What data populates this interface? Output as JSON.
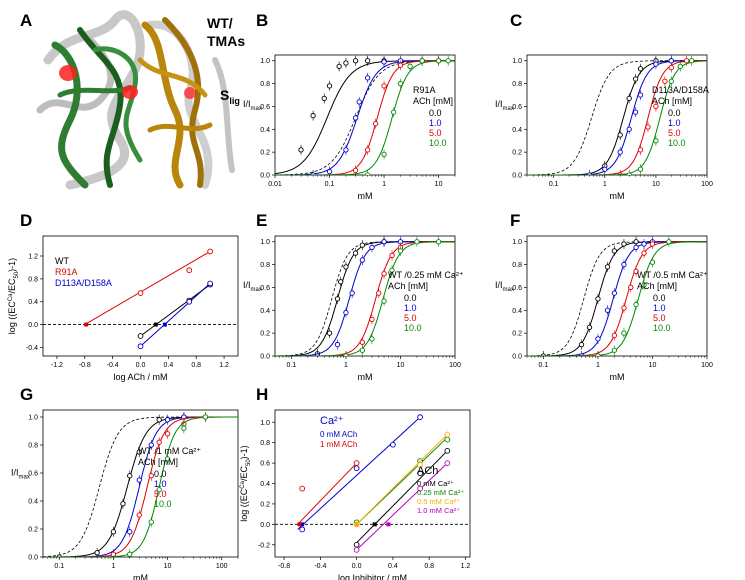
{
  "panel_a": {
    "letter": "A",
    "label_1": "WT/",
    "label_2": "TMAs",
    "label_s": "S",
    "label_s_sub": "lig"
  },
  "chart_data": [
    {
      "id": "B",
      "letter": "B",
      "type": "line",
      "xscale": "log",
      "xlim": [
        0.01,
        20
      ],
      "ylim": [
        0,
        1.05
      ],
      "xlabel": "mM",
      "ylabel": "I/I",
      "ylabel_sub": "max",
      "xticks": [
        0.01,
        0.1,
        1,
        10
      ],
      "xticklabels": [
        "0.01",
        "0.1",
        "1",
        "10"
      ],
      "yticks": [
        0,
        0.2,
        0.4,
        0.6,
        0.8,
        1.0
      ],
      "yticklabels": [
        "0.0",
        "0.2",
        "0.4",
        "0.6",
        "0.8",
        "1.0"
      ],
      "legend_title": [
        "R91A",
        "ACh [mM]"
      ],
      "legend_pos": "center-right",
      "ref": {
        "ec50": 0.3,
        "n": 2.0
      },
      "series": [
        {
          "name": "0.0",
          "color": "#000000",
          "ec50": 0.09,
          "n": 2.0,
          "x": [
            0.03,
            0.05,
            0.08,
            0.1,
            0.15,
            0.2,
            0.3,
            0.5,
            1.0
          ],
          "y": [
            0.22,
            0.52,
            0.67,
            0.78,
            0.95,
            0.98,
            1.0,
            1.0,
            1.0
          ]
        },
        {
          "name": "1.0",
          "color": "#0000cc",
          "ec50": 0.32,
          "n": 2.5,
          "x": [
            0.05,
            0.1,
            0.2,
            0.3,
            0.35,
            0.5,
            1.0,
            2.0,
            5.0
          ],
          "y": [
            0.0,
            0.03,
            0.22,
            0.5,
            0.64,
            0.85,
            0.99,
            1.0,
            1.0
          ]
        },
        {
          "name": "5.0",
          "color": "#dd0000",
          "ec50": 0.75,
          "n": 3.0,
          "x": [
            0.3,
            0.5,
            0.7,
            1.0,
            2.0,
            5.0,
            10.0
          ],
          "y": [
            0.04,
            0.22,
            0.45,
            0.78,
            0.96,
            1.0,
            1.0
          ]
        },
        {
          "name": "10.0",
          "color": "#008800",
          "ec50": 1.4,
          "n": 3.0,
          "x": [
            0.5,
            1.0,
            1.5,
            2.0,
            3.0,
            5.0,
            10.0,
            15.0
          ],
          "y": [
            0.0,
            0.18,
            0.55,
            0.8,
            0.95,
            1.0,
            1.0,
            1.0
          ]
        }
      ]
    },
    {
      "id": "C",
      "letter": "C",
      "type": "line",
      "xscale": "log",
      "xlim": [
        0.03,
        100
      ],
      "ylim": [
        0,
        1.05
      ],
      "xlabel": "mM",
      "ylabel": "I/I",
      "ylabel_sub": "max",
      "xticks": [
        0.1,
        1,
        10,
        100
      ],
      "xticklabels": [
        "0.1",
        "1",
        "10",
        "100"
      ],
      "yticks": [
        0,
        0.2,
        0.4,
        0.6,
        0.8,
        1.0
      ],
      "yticklabels": [
        "0.0",
        "0.2",
        "0.4",
        "0.6",
        "0.8",
        "1.0"
      ],
      "legend_title": [
        "D113A/D158A",
        "ACh [mM]"
      ],
      "legend_pos": "center-right",
      "ref": {
        "ec50": 0.55,
        "n": 2.5
      },
      "series": [
        {
          "name": "0.0",
          "color": "#000000",
          "ec50": 2.3,
          "n": 2.8,
          "x": [
            1.0,
            2.0,
            3.0,
            4.0,
            5.0,
            10.0,
            20.0
          ],
          "y": [
            0.08,
            0.35,
            0.67,
            0.84,
            0.93,
            1.0,
            1.0
          ]
        },
        {
          "name": "1.0",
          "color": "#0000cc",
          "ec50": 3.3,
          "n": 2.8,
          "x": [
            0.5,
            1.0,
            2.0,
            3.0,
            4.0,
            5.0,
            10.0,
            20.0
          ],
          "y": [
            0.0,
            0.05,
            0.2,
            0.4,
            0.55,
            0.7,
            0.97,
            1.0
          ]
        },
        {
          "name": "5.0",
          "color": "#dd0000",
          "ec50": 7.0,
          "n": 3.0,
          "x": [
            2.0,
            5.0,
            7.0,
            10.0,
            15.0,
            20.0,
            40.0
          ],
          "y": [
            0.0,
            0.22,
            0.42,
            0.6,
            0.82,
            0.94,
            1.0
          ]
        },
        {
          "name": "10.0",
          "color": "#008800",
          "ec50": 12.0,
          "n": 3.0,
          "x": [
            3.0,
            5.0,
            10.0,
            20.0,
            30.0,
            50.0
          ],
          "y": [
            0.0,
            0.05,
            0.3,
            0.82,
            0.95,
            1.0
          ]
        }
      ]
    },
    {
      "id": "D",
      "letter": "D",
      "type": "scatter",
      "xscale": "linear",
      "xlim": [
        -1.4,
        1.4
      ],
      "ylim": [
        -0.55,
        1.55
      ],
      "xlabel": "log ACh / mM",
      "ylabel": "log ((EC",
      "ylabel_sup": "Ca",
      "ylabel_tail": "/EC",
      "ylabel_sub": "50",
      "ylabel_end": ")-1)",
      "xticks": [
        -1.2,
        -0.8,
        -0.4,
        0,
        0.4,
        0.8,
        1.2
      ],
      "xticklabels": [
        "-1.2",
        "-0.8",
        "-0.4",
        "0.0",
        "0.4",
        "0.8",
        "1.2"
      ],
      "yticks": [
        -0.4,
        0,
        0.4,
        0.8,
        1.2
      ],
      "yticklabels": [
        "-0.4",
        "0.0",
        "0.4",
        "0.8",
        "1.2"
      ],
      "zero_line": true,
      "legend_pos": "top-left",
      "series": [
        {
          "name": "WT",
          "color": "#000000",
          "x": [
            0.0,
            0.7,
            1.0
          ],
          "y": [
            -0.2,
            0.42,
            0.7
          ],
          "fit": [
            [
              0.0,
              -0.2
            ],
            [
              1.0,
              0.7
            ]
          ],
          "intercept": [
            0.22,
            0.0
          ]
        },
        {
          "name": "R91A",
          "color": "#dd0000",
          "x": [
            0.0,
            0.7,
            1.0
          ],
          "y": [
            0.55,
            0.95,
            1.28
          ],
          "fit": [
            [
              -0.8,
              0.0
            ],
            [
              1.0,
              1.28
            ]
          ],
          "intercept": [
            -0.78,
            0.0
          ]
        },
        {
          "name": "D113A/D158A",
          "color": "#0000cc",
          "x": [
            0.0,
            0.7,
            1.0
          ],
          "y": [
            -0.38,
            0.4,
            0.72
          ],
          "fit": [
            [
              0.0,
              -0.38
            ],
            [
              1.0,
              0.72
            ]
          ],
          "intercept": [
            0.35,
            0.0
          ]
        }
      ]
    },
    {
      "id": "E",
      "letter": "E",
      "type": "line",
      "xscale": "log",
      "xlim": [
        0.05,
        100
      ],
      "ylim": [
        0,
        1.05
      ],
      "xlabel": "mM",
      "ylabel": "I/I",
      "ylabel_sub": "max",
      "xticks": [
        0.1,
        1,
        10,
        100
      ],
      "xticklabels": [
        "0.1",
        "1",
        "10",
        "100"
      ],
      "yticks": [
        0,
        0.2,
        0.4,
        0.6,
        0.8,
        1.0
      ],
      "yticklabels": [
        "0.0",
        "0.2",
        "0.4",
        "0.6",
        "0.8",
        "1.0"
      ],
      "legend_title": [
        "WT /0.25 mM Ca²⁺",
        "ACh [mM]"
      ],
      "legend_pos": "center-right",
      "ref": {
        "ec50": 0.55,
        "n": 3.0
      },
      "series": [
        {
          "name": "0.0",
          "color": "#000000",
          "ec50": 0.7,
          "n": 3.0,
          "x": [
            0.3,
            0.5,
            0.7,
            0.8,
            1.0,
            1.5,
            2.0,
            5.0
          ],
          "y": [
            0.02,
            0.2,
            0.5,
            0.65,
            0.78,
            0.9,
            0.97,
            1.0
          ]
        },
        {
          "name": "1.0",
          "color": "#0000cc",
          "ec50": 1.15,
          "n": 3.0,
          "x": [
            0.3,
            0.7,
            1.0,
            1.3,
            2.0,
            3.0,
            5.0,
            10.0
          ],
          "y": [
            0.0,
            0.1,
            0.38,
            0.55,
            0.84,
            0.95,
            1.0,
            1.0
          ]
        },
        {
          "name": "5.0",
          "color": "#dd0000",
          "ec50": 3.5,
          "n": 3.0,
          "x": [
            1.0,
            2.0,
            3.0,
            4.0,
            5.0,
            7.0,
            10.0
          ],
          "y": [
            0.0,
            0.12,
            0.32,
            0.55,
            0.72,
            0.88,
            0.95
          ]
        },
        {
          "name": "10.0",
          "color": "#008800",
          "ec50": 4.8,
          "n": 3.0,
          "x": [
            1.0,
            2.0,
            3.0,
            5.0,
            7.0,
            10.0,
            20.0,
            50.0
          ],
          "y": [
            0.0,
            0.05,
            0.15,
            0.48,
            0.75,
            0.92,
            1.0,
            1.0
          ]
        }
      ]
    },
    {
      "id": "F",
      "letter": "F",
      "type": "line",
      "xscale": "log",
      "xlim": [
        0.05,
        100
      ],
      "ylim": [
        0,
        1.05
      ],
      "xlabel": "mM",
      "ylabel": "I/I",
      "ylabel_sub": "max",
      "xticks": [
        0.1,
        1,
        10,
        100
      ],
      "xticklabels": [
        "0.1",
        "1",
        "10",
        "100"
      ],
      "yticks": [
        0,
        0.2,
        0.4,
        0.6,
        0.8,
        1.0
      ],
      "yticklabels": [
        "0.0",
        "0.2",
        "0.4",
        "0.6",
        "0.8",
        "1.0"
      ],
      "legend_title": [
        "WT /0.5 mM Ca²⁺",
        "ACh [mM]"
      ],
      "legend_pos": "center-right",
      "ref": {
        "ec50": 0.55,
        "n": 3.0
      },
      "series": [
        {
          "name": "0.0",
          "color": "#000000",
          "ec50": 1.0,
          "n": 3.0,
          "x": [
            0.1,
            0.5,
            0.7,
            1.0,
            1.5,
            2.0,
            3.0,
            5.0
          ],
          "y": [
            0.0,
            0.1,
            0.25,
            0.5,
            0.78,
            0.92,
            0.98,
            1.0
          ]
        },
        {
          "name": "1.0",
          "color": "#0000cc",
          "ec50": 1.9,
          "n": 3.0,
          "x": [
            0.5,
            1.0,
            1.5,
            2.0,
            3.0,
            5.0,
            7.0,
            10.0
          ],
          "y": [
            0.0,
            0.15,
            0.4,
            0.55,
            0.8,
            0.95,
            0.98,
            1.0
          ]
        },
        {
          "name": "5.0",
          "color": "#dd0000",
          "ec50": 3.3,
          "n": 3.0,
          "x": [
            1.0,
            2.0,
            3.0,
            4.0,
            5.0,
            7.0,
            10.0
          ],
          "y": [
            0.0,
            0.18,
            0.42,
            0.6,
            0.74,
            0.9,
            0.98
          ]
        },
        {
          "name": "10.0",
          "color": "#008800",
          "ec50": 5.5,
          "n": 3.0,
          "x": [
            1.0,
            2.0,
            3.0,
            5.0,
            7.0,
            10.0,
            20.0
          ],
          "y": [
            0.0,
            0.05,
            0.2,
            0.45,
            0.62,
            0.82,
            1.0
          ]
        }
      ]
    },
    {
      "id": "G",
      "letter": "G",
      "type": "line",
      "xscale": "log",
      "xlim": [
        0.05,
        200
      ],
      "ylim": [
        0,
        1.05
      ],
      "xlabel": "mM",
      "ylabel": "I/I",
      "ylabel_sub": "max",
      "xticks": [
        0.1,
        1,
        10,
        100
      ],
      "xticklabels": [
        "0.1",
        "1",
        "10",
        "100"
      ],
      "yticks": [
        0,
        0.2,
        0.4,
        0.6,
        0.8,
        1.0
      ],
      "yticklabels": [
        "0.0",
        "0.2",
        "0.4",
        "0.6",
        "0.8",
        "1.0"
      ],
      "legend_title": [
        "WT /1 mM Ca²⁺",
        "ACh [mM]"
      ],
      "legend_pos": "center-right",
      "ref": {
        "ec50": 0.55,
        "n": 2.5
      },
      "series": [
        {
          "name": "0.0",
          "color": "#000000",
          "ec50": 1.8,
          "n": 2.5,
          "x": [
            0.1,
            0.5,
            1.0,
            1.5,
            2.0,
            3.0,
            7.0,
            20.0
          ],
          "y": [
            0.0,
            0.03,
            0.18,
            0.38,
            0.58,
            0.75,
            0.98,
            1.0
          ]
        },
        {
          "name": "1.0",
          "color": "#0000cc",
          "ec50": 3.0,
          "n": 2.8,
          "x": [
            1.0,
            2.0,
            3.0,
            5.0,
            10.0,
            20.0
          ],
          "y": [
            0.02,
            0.18,
            0.55,
            0.8,
            0.98,
            1.0
          ]
        },
        {
          "name": "5.0",
          "color": "#dd0000",
          "ec50": 4.2,
          "n": 2.8,
          "x": [
            1.0,
            3.0,
            5.0,
            7.0,
            10.0,
            20.0,
            50.0
          ],
          "y": [
            0.02,
            0.3,
            0.58,
            0.82,
            0.88,
            0.95,
            1.0
          ]
        },
        {
          "name": "10.0",
          "color": "#008800",
          "ec50": 7.0,
          "n": 3.0,
          "x": [
            2.0,
            5.0,
            7.0,
            10.0,
            20.0,
            50.0
          ],
          "y": [
            0.02,
            0.25,
            0.48,
            0.7,
            0.92,
            1.0
          ]
        }
      ]
    },
    {
      "id": "H",
      "letter": "H",
      "type": "scatter",
      "xscale": "linear",
      "xlim": [
        -0.9,
        1.25
      ],
      "ylim": [
        -0.32,
        1.12
      ],
      "xlabel": "log Inhibitor / mM",
      "ylabel": "log ((EC",
      "ylabel_sup": "Ca",
      "ylabel_tail": "/EC",
      "ylabel_sub": "50",
      "ylabel_end": ")-1)",
      "xticks": [
        -0.8,
        -0.4,
        0,
        0.4,
        0.8,
        1.2
      ],
      "xticklabels": [
        "-0.8",
        "-0.4",
        "0.0",
        "0.4",
        "0.8",
        "1.2"
      ],
      "yticks": [
        -0.2,
        0,
        0.2,
        0.4,
        0.6,
        0.8,
        1.0
      ],
      "yticklabels": [
        "-0.2",
        "0.0",
        "0.2",
        "0.4",
        "0.6",
        "0.8",
        "1.0"
      ],
      "zero_line": true,
      "legend_groups": [
        {
          "title": "Ca²⁺",
          "title_color": "#0000cc",
          "pos": "top-left",
          "entries": [
            0,
            1
          ]
        },
        {
          "title": "ACh",
          "title_color": "#000000",
          "pos": "center-right",
          "entries": [
            2,
            3,
            4,
            5
          ]
        }
      ],
      "series": [
        {
          "name": "0 mM ACh",
          "color": "#0000cc",
          "x": [
            -0.6,
            0.0,
            0.4,
            0.7
          ],
          "y": [
            -0.05,
            0.55,
            0.78,
            1.05
          ],
          "fit": [
            [
              -0.65,
              -0.05
            ],
            [
              0.7,
              1.05
            ]
          ],
          "intercept": [
            -0.6,
            0.0
          ]
        },
        {
          "name": "1 mM ACh",
          "color": "#dd0000",
          "x": [
            -0.6,
            0.0
          ],
          "y": [
            0.35,
            0.6
          ],
          "fit": [
            [
              -0.65,
              0.0
            ],
            [
              0.0,
              0.6
            ]
          ],
          "intercept": [
            -0.63,
            0.0
          ]
        },
        {
          "name": "0 mM Ca²⁺",
          "color": "#000000",
          "x": [
            0.0,
            0.7,
            1.0
          ],
          "y": [
            -0.2,
            0.5,
            0.72
          ],
          "fit": [
            [
              0.0,
              -0.18
            ],
            [
              1.0,
              0.72
            ]
          ],
          "intercept": [
            0.2,
            0.0
          ]
        },
        {
          "name": "0.25 mM Ca²⁺",
          "color": "#008800",
          "x": [
            0.0,
            0.7,
            1.0
          ],
          "y": [
            0.02,
            0.62,
            0.83
          ],
          "fit": [
            [
              0.0,
              0.0
            ],
            [
              1.0,
              0.85
            ]
          ],
          "intercept": [
            0.0,
            0.0
          ]
        },
        {
          "name": "0.5 mM Ca²⁺",
          "color": "#ffaa00",
          "x": [
            0.0,
            0.7,
            1.0
          ],
          "y": [
            0.0,
            0.58,
            0.88
          ],
          "fit": [
            [
              0.0,
              0.0
            ],
            [
              1.0,
              0.88
            ]
          ],
          "intercept": [
            0.0,
            0.0
          ]
        },
        {
          "name": "1.0 mM Ca²⁺",
          "color": "#bb00bb",
          "x": [
            0.0,
            0.7,
            1.0
          ],
          "y": [
            -0.25,
            0.35,
            0.6
          ],
          "fit": [
            [
              0.0,
              -0.25
            ],
            [
              1.0,
              0.6
            ]
          ],
          "intercept": [
            0.35,
            0.0
          ]
        }
      ]
    }
  ]
}
